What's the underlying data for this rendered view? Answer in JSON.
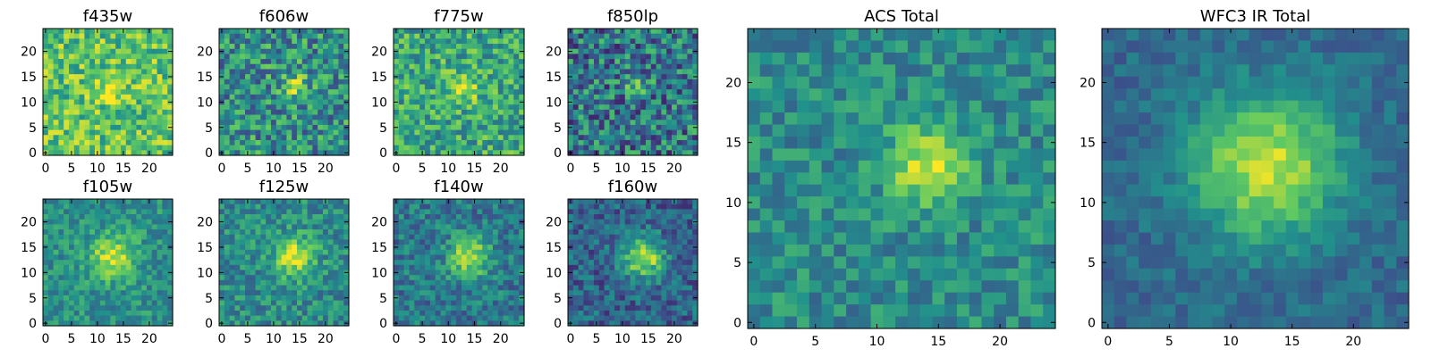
{
  "figure": {
    "colormap": "viridis",
    "colormap_stops": [
      "#440154",
      "#3b528b",
      "#21918c",
      "#5ec962",
      "#fde725"
    ]
  },
  "chart_data": [
    {
      "type": "heatmap",
      "title": "f435w",
      "grid_size": 25,
      "xlim": [
        0,
        24
      ],
      "ylim": [
        0,
        24
      ],
      "x_ticks": [
        0,
        5,
        10,
        15,
        20
      ],
      "y_ticks": [
        0,
        5,
        10,
        15,
        20
      ],
      "peak": [
        13,
        12
      ],
      "noise_level": "high",
      "dominant_value": "high"
    },
    {
      "type": "heatmap",
      "title": "f606w",
      "grid_size": 25,
      "xlim": [
        0,
        24
      ],
      "ylim": [
        0,
        24
      ],
      "x_ticks": [
        0,
        5,
        10,
        15,
        20
      ],
      "y_ticks": [
        0,
        5,
        10,
        15,
        20
      ],
      "peak": [
        14,
        13
      ],
      "noise_level": "high",
      "dominant_value": "medium"
    },
    {
      "type": "heatmap",
      "title": "f775w",
      "grid_size": 25,
      "xlim": [
        0,
        24
      ],
      "ylim": [
        0,
        24
      ],
      "x_ticks": [
        0,
        5,
        10,
        15,
        20
      ],
      "y_ticks": [
        0,
        5,
        10,
        15,
        20
      ],
      "peak": [
        13,
        13
      ],
      "noise_level": "high",
      "dominant_value": "medium-high"
    },
    {
      "type": "heatmap",
      "title": "f850lp",
      "grid_size": 25,
      "xlim": [
        0,
        24
      ],
      "ylim": [
        0,
        24
      ],
      "x_ticks": [
        0,
        5,
        10,
        15,
        20
      ],
      "y_ticks": [
        0,
        5,
        10,
        15,
        20
      ],
      "peak": [
        13,
        13
      ],
      "noise_level": "very high",
      "dominant_value": "medium-low"
    },
    {
      "type": "heatmap",
      "title": "f105w",
      "grid_size": 25,
      "xlim": [
        0,
        24
      ],
      "ylim": [
        0,
        24
      ],
      "x_ticks": [
        0,
        5,
        10,
        15,
        20
      ],
      "y_ticks": [
        0,
        5,
        10,
        15,
        20
      ],
      "peak": [
        13,
        13
      ],
      "noise_level": "medium",
      "dominant_value": "medium"
    },
    {
      "type": "heatmap",
      "title": "f125w",
      "grid_size": 25,
      "xlim": [
        0,
        24
      ],
      "ylim": [
        0,
        24
      ],
      "x_ticks": [
        0,
        5,
        10,
        15,
        20
      ],
      "y_ticks": [
        0,
        5,
        10,
        15,
        20
      ],
      "peak": [
        14,
        13
      ],
      "noise_level": "medium",
      "dominant_value": "medium"
    },
    {
      "type": "heatmap",
      "title": "f140w",
      "grid_size": 25,
      "xlim": [
        0,
        24
      ],
      "ylim": [
        0,
        24
      ],
      "x_ticks": [
        0,
        5,
        10,
        15,
        20
      ],
      "y_ticks": [
        0,
        5,
        10,
        15,
        20
      ],
      "peak": [
        14,
        13
      ],
      "noise_level": "medium",
      "dominant_value": "medium-low"
    },
    {
      "type": "heatmap",
      "title": "f160w",
      "grid_size": 25,
      "xlim": [
        0,
        24
      ],
      "ylim": [
        0,
        24
      ],
      "x_ticks": [
        0,
        5,
        10,
        15,
        20
      ],
      "y_ticks": [
        0,
        5,
        10,
        15,
        20
      ],
      "peak": [
        14,
        13
      ],
      "noise_level": "medium",
      "dominant_value": "low"
    },
    {
      "type": "heatmap",
      "title": "ACS Total",
      "grid_size": 25,
      "xlim": [
        0,
        24
      ],
      "ylim": [
        0,
        24
      ],
      "x_ticks": [
        0,
        5,
        10,
        15,
        20
      ],
      "y_ticks": [
        0,
        5,
        10,
        15,
        20
      ],
      "peak": [
        14,
        13
      ],
      "noise_level": "medium",
      "dominant_value": "medium"
    },
    {
      "type": "heatmap",
      "title": "WFC3 IR Total",
      "grid_size": 25,
      "xlim": [
        0,
        24
      ],
      "ylim": [
        0,
        24
      ],
      "x_ticks": [
        0,
        5,
        10,
        15,
        20
      ],
      "y_ticks": [
        0,
        5,
        10,
        15,
        20
      ],
      "peak": [
        13,
        13
      ],
      "noise_level": "low",
      "dominant_value": "medium-low"
    }
  ]
}
